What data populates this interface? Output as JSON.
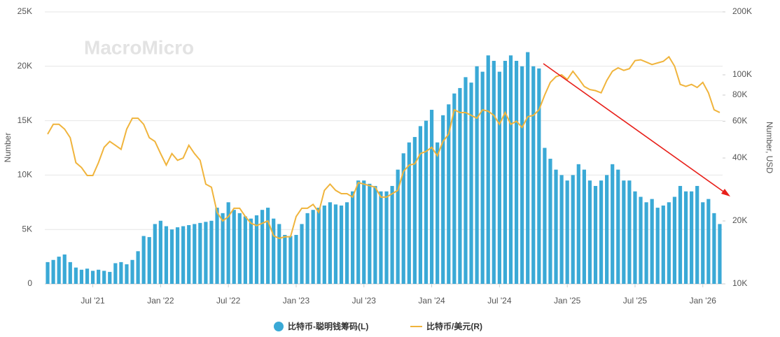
{
  "chart_data": {
    "type": "bar-line",
    "watermark": "MacroMicro",
    "y_label": "Number",
    "y2_label": "Number, USD",
    "categories": [
      null,
      null,
      null,
      null,
      null,
      null,
      null,
      null,
      "Jul '21",
      null,
      null,
      null,
      null,
      null,
      null,
      null,
      null,
      null,
      null,
      null,
      "Jan '22",
      null,
      null,
      null,
      null,
      null,
      null,
      null,
      null,
      null,
      null,
      null,
      "Jul '22",
      null,
      null,
      null,
      null,
      null,
      null,
      null,
      null,
      null,
      null,
      null,
      "Jan '23",
      null,
      null,
      null,
      null,
      null,
      null,
      null,
      null,
      null,
      null,
      null,
      "Jul '23",
      null,
      null,
      null,
      null,
      null,
      null,
      null,
      null,
      null,
      null,
      null,
      "Jan '24",
      null,
      null,
      null,
      null,
      null,
      null,
      null,
      null,
      null,
      null,
      null,
      "Jul '24",
      null,
      null,
      null,
      null,
      null,
      null,
      null,
      null,
      null,
      null,
      null,
      "Jan '25",
      null,
      null,
      null,
      null,
      null,
      null,
      null,
      null,
      null,
      null,
      null,
      "Jul '25",
      null,
      null,
      null,
      null,
      null,
      null,
      null,
      null,
      null,
      null,
      null,
      "Jan '26",
      null,
      null,
      null
    ],
    "series": [
      {
        "name": "比特币-聪明钱筹码(L)",
        "color": "#3aa9d6",
        "axis": "y",
        "values": [
          2000,
          2200,
          2500,
          2700,
          2000,
          1500,
          1300,
          1400,
          1200,
          1300,
          1200,
          1100,
          1900,
          2000,
          1800,
          2200,
          3000,
          4400,
          4300,
          5500,
          5800,
          5300,
          5000,
          5200,
          5300,
          5400,
          5500,
          5600,
          5700,
          5800,
          7000,
          6500,
          7500,
          6800,
          6500,
          6200,
          6000,
          6300,
          6800,
          7000,
          6000,
          5500,
          4500,
          4400,
          4500,
          5500,
          6500,
          6800,
          7000,
          7200,
          7500,
          7300,
          7200,
          7500,
          8500,
          9500,
          9500,
          9200,
          9000,
          8500,
          8500,
          9000,
          10500,
          12000,
          13000,
          13500,
          14500,
          15000,
          16000,
          13000,
          15500,
          16500,
          17500,
          18000,
          19000,
          18500,
          20000,
          19500,
          21000,
          20500,
          19500,
          20500,
          21000,
          20500,
          20000,
          21300,
          20000,
          19800,
          12500,
          11500,
          10500,
          10000,
          9500,
          10000,
          11000,
          10500,
          9500,
          9000,
          9500,
          10000,
          11000,
          10500,
          9500,
          9500,
          8500,
          8000,
          7500,
          7800,
          7000,
          7200,
          7500,
          8000,
          9000,
          8500,
          8500,
          9000,
          7500,
          7800,
          6500,
          5500
        ]
      },
      {
        "name": "比特币/美元(R)",
        "color": "#f0b43c",
        "axis": "y2",
        "values": [
          52000,
          58000,
          58000,
          55000,
          50000,
          38000,
          36000,
          33000,
          33000,
          38000,
          45000,
          48000,
          46000,
          44000,
          55000,
          62000,
          62000,
          58000,
          50000,
          48000,
          42000,
          37000,
          42000,
          39000,
          40000,
          46000,
          42000,
          39000,
          30000,
          29000,
          22000,
          20000,
          21000,
          23000,
          23000,
          21000,
          19500,
          19000,
          19500,
          20000,
          17000,
          16500,
          16800,
          16800,
          21000,
          23000,
          23000,
          24000,
          22000,
          28000,
          30000,
          28000,
          27000,
          27000,
          26000,
          30500,
          30000,
          29500,
          29000,
          26000,
          26000,
          27000,
          28000,
          34500,
          37000,
          37500,
          42000,
          43000,
          45000,
          41000,
          48000,
          52000,
          68000,
          66000,
          66000,
          64000,
          62000,
          68000,
          67000,
          64000,
          58000,
          66000,
          58000,
          60000,
          56000,
          63000,
          64000,
          68000,
          80000,
          92000,
          98000,
          100000,
          95000,
          104000,
          96000,
          88000,
          85000,
          84000,
          82000,
          94000,
          104000,
          108000,
          105000,
          107000,
          117000,
          118000,
          115000,
          112000,
          114000,
          116000,
          122000,
          110000,
          90000,
          88000,
          90000,
          87000,
          92000,
          82000,
          68000,
          66000
        ]
      }
    ],
    "ylim": [
      0,
      25000
    ],
    "yticks": [
      0,
      {
        "value": 5000,
        "label": "5K"
      },
      {
        "value": 10000,
        "label": "10K"
      },
      {
        "value": 15000,
        "label": "15K"
      },
      {
        "value": 20000,
        "label": "20K"
      },
      {
        "value": 25000,
        "label": "25K"
      }
    ],
    "y2lim": [
      10000,
      200000
    ],
    "y2log": true,
    "y2ticks": [
      {
        "value": 10000,
        "label": "10K"
      },
      {
        "value": 20000,
        "label": "20K"
      },
      {
        "value": 40000,
        "label": "40K"
      },
      {
        "value": 60000,
        "label": "60K"
      },
      {
        "value": 80000,
        "label": "80K"
      },
      {
        "value": 100000,
        "label": "100K"
      },
      {
        "value": 200000,
        "label": "200K"
      }
    ],
    "grid": true
  }
}
